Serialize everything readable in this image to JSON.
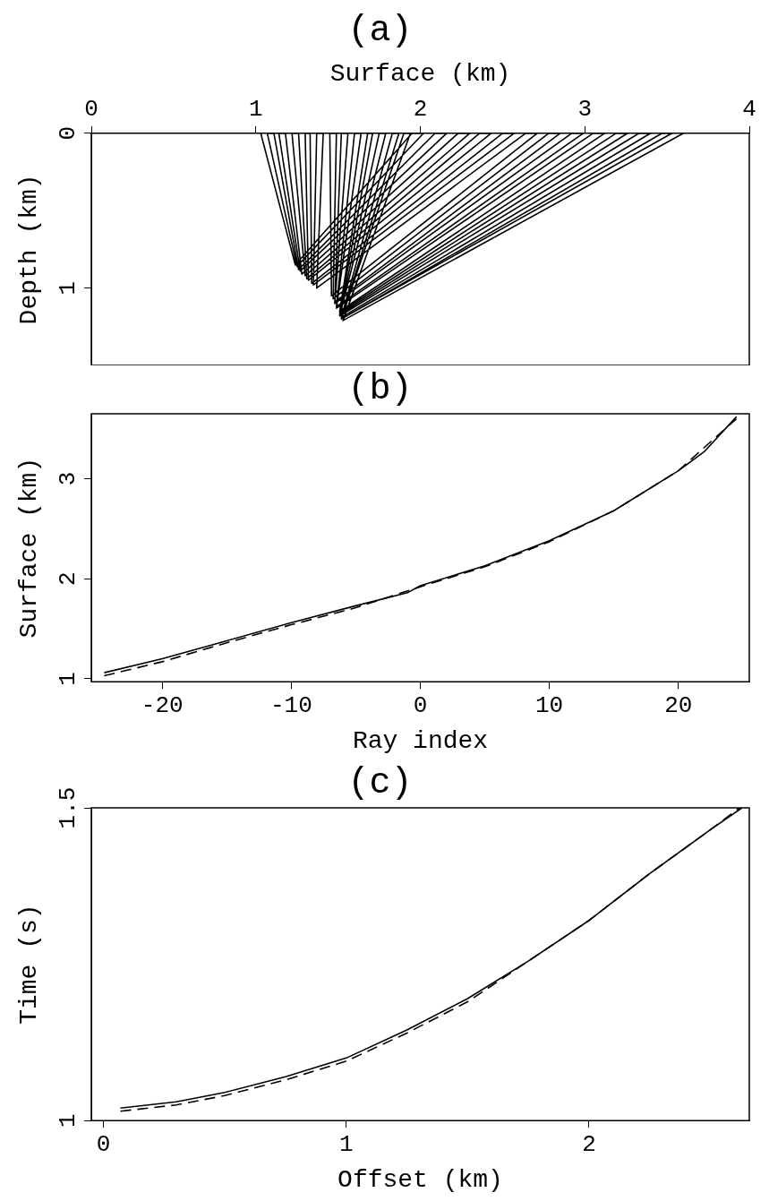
{
  "chart_data": [
    {
      "type": "line",
      "title": "(a)",
      "x2label": "Surface (km)",
      "ylabel": "Depth (km)",
      "x2lim": [
        0,
        4
      ],
      "x2ticks": [
        0,
        1,
        2,
        3,
        4
      ],
      "ylim": [
        1.5,
        0
      ],
      "yticks": [
        0,
        1
      ],
      "grid": false,
      "marker": "none",
      "x": [
        1.03,
        1.24,
        1.95,
        2.02,
        1.25,
        1.07,
        1.11,
        1.26,
        2.09,
        2.16,
        1.27,
        1.14,
        1.18,
        1.28,
        2.23,
        2.3,
        1.3,
        1.22,
        1.26,
        1.31,
        2.36,
        2.43,
        1.32,
        1.3,
        1.33,
        1.34,
        2.5,
        2.57,
        1.35,
        1.37,
        1.41,
        1.37,
        2.64,
        2.71,
        1.46,
        1.45,
        1.49,
        1.47,
        2.78,
        2.85,
        1.48,
        1.52,
        1.56,
        1.48,
        2.92,
        2.99,
        1.49,
        1.6,
        1.64,
        1.49,
        3.05,
        3.12,
        1.51,
        1.68,
        1.71,
        1.51,
        3.19,
        3.26,
        1.51,
        1.75,
        1.79,
        1.51,
        3.33,
        3.4,
        1.52,
        1.83,
        1.87,
        1.52,
        3.47,
        3.53,
        1.52,
        1.9,
        1.94,
        1.53,
        3.6
      ],
      "series": [
        {
          "color": "#000000",
          "line_style": "solid",
          "axis": "x2",
          "values": [
            0,
            0.85,
            0,
            0,
            0.86,
            0,
            0,
            0.88,
            0,
            0,
            0.89,
            0,
            0,
            0.91,
            0,
            0,
            0.92,
            0,
            0,
            0.94,
            0,
            0,
            0.95,
            0,
            0,
            0.97,
            0,
            0,
            0.98,
            0,
            0,
            1.0,
            0,
            0,
            1.05,
            0,
            0,
            1.07,
            0,
            0,
            1.09,
            0,
            0,
            1.1,
            0,
            0,
            1.12,
            0,
            0,
            1.13,
            0,
            0,
            1.15,
            0,
            0,
            1.16,
            0,
            0,
            1.17,
            0,
            0,
            1.18,
            0,
            0,
            1.19,
            0,
            0,
            1.2,
            0,
            0,
            1.2,
            0,
            0,
            1.21,
            0
          ]
        }
      ]
    },
    {
      "type": "line",
      "title": "(b)",
      "xlabel": "Ray index",
      "ylabel": "Surface (km)",
      "xlim": [
        -25.5,
        25.5
      ],
      "xticks": [
        -20,
        -10,
        0,
        10,
        20
      ],
      "ylim": [
        0.97,
        3.65
      ],
      "yticks": [
        1,
        2,
        3
      ],
      "grid": false,
      "marker": "none",
      "series": [
        {
          "color": "#000000",
          "line_style": "solid",
          "x": [
            -24.5,
            -20,
            -15,
            -10,
            -5,
            -1,
            0,
            5,
            10,
            15,
            20,
            22,
            24.5
          ],
          "values": [
            1.06,
            1.2,
            1.38,
            1.56,
            1.73,
            1.86,
            1.93,
            2.13,
            2.38,
            2.68,
            3.08,
            3.27,
            3.62
          ]
        },
        {
          "color": "#000000",
          "line_style": "dashed",
          "x": [
            -24.5,
            -20,
            -15,
            -10,
            -5,
            0,
            5,
            10,
            15,
            20,
            24.5
          ],
          "values": [
            1.03,
            1.17,
            1.36,
            1.54,
            1.71,
            1.92,
            2.12,
            2.37,
            2.68,
            3.08,
            3.6
          ]
        }
      ]
    },
    {
      "type": "line",
      "title": "(c)",
      "xlabel": "Offset (km)",
      "ylabel": "Time (s)",
      "xlim": [
        -0.05,
        2.66
      ],
      "xticks": [
        0,
        1,
        2
      ],
      "ylim": [
        1,
        1.5
      ],
      "yticks": [
        1,
        1.5
      ],
      "grid": false,
      "marker": "none",
      "series": [
        {
          "color": "#000000",
          "line_style": "solid",
          "x": [
            0.07,
            0.3,
            0.5,
            0.75,
            1.0,
            1.25,
            1.5,
            1.75,
            2.0,
            2.25,
            2.5,
            2.63
          ],
          "values": [
            1.02,
            1.03,
            1.045,
            1.07,
            1.1,
            1.145,
            1.195,
            1.255,
            1.32,
            1.395,
            1.465,
            1.5
          ]
        },
        {
          "color": "#000000",
          "line_style": "dashed",
          "x": [
            0.07,
            0.3,
            0.5,
            0.75,
            1.0,
            1.25,
            1.5,
            1.75,
            2.0,
            2.25,
            2.5,
            2.62
          ],
          "values": [
            1.015,
            1.025,
            1.04,
            1.065,
            1.095,
            1.14,
            1.19,
            1.255,
            1.32,
            1.395,
            1.465,
            1.5
          ]
        }
      ]
    }
  ]
}
